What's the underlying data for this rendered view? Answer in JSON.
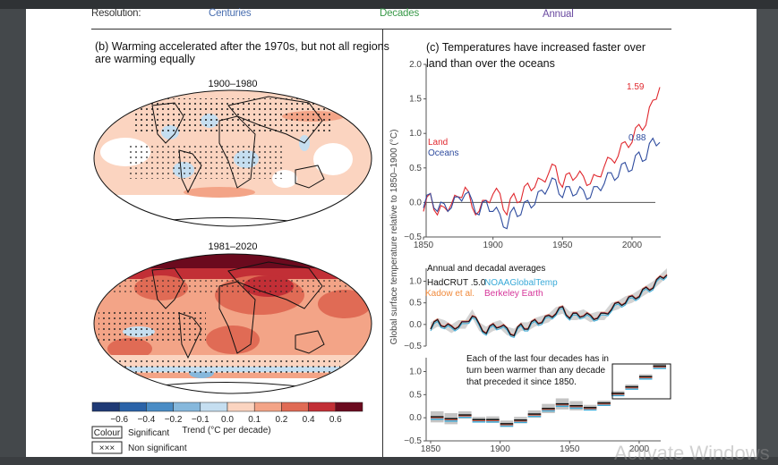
{
  "resolution": {
    "label": "Resolution:",
    "options": [
      {
        "label": "Centuries",
        "color": "#4a6fb0"
      },
      {
        "label": "Decades",
        "color": "#3a9a4a"
      },
      {
        "label": "Annual",
        "color": "#6a4aa0"
      }
    ]
  },
  "panel_b": {
    "title_line1": "(b) Warming accelerated after the 1970s, but not all regions",
    "title_line2": "are warming equally",
    "maps": [
      {
        "period": "1900–1980"
      },
      {
        "period": "1981–2020"
      }
    ],
    "colorbar": {
      "colors": [
        "#1f3a75",
        "#2b63a8",
        "#4a8cc5",
        "#86b8dc",
        "#c5def0",
        "#fbd4c0",
        "#f3a487",
        "#e06b55",
        "#c22f36",
        "#6b0a1e"
      ],
      "ticks": [
        "−0.6",
        "−0.4",
        "−0.2",
        "−0.1",
        "0.0",
        "0.1",
        "0.2",
        "0.4",
        "0.6"
      ],
      "label": "Trend (°C per decade)"
    },
    "legend": {
      "significant_box": "Colour",
      "significant_label": "Significant",
      "nonsignificant_box": "×××",
      "nonsignificant_label": "Non significant"
    }
  },
  "chart_data": [
    {
      "type": "line",
      "title": "(c) Temperatures have increased faster over land than over the oceans",
      "ylabel": "Global surface temperature relative to 1850–1900 (°C)",
      "xlabel": "",
      "xlim": [
        1850,
        2020
      ],
      "ylim": [
        -0.5,
        2.0
      ],
      "xticks": [
        "1850",
        "1900",
        "1950",
        "2000"
      ],
      "yticks": [
        "−0.5",
        "0.0",
        "0.5",
        "1.0",
        "1.5",
        "2.0"
      ],
      "legend": [
        "Land",
        "Oceans"
      ],
      "annotations": [
        {
          "text": "1.59",
          "series": "Land"
        },
        {
          "text": "0.88",
          "series": "Oceans"
        }
      ],
      "x": [
        1850,
        1855,
        1860,
        1865,
        1870,
        1875,
        1880,
        1885,
        1890,
        1895,
        1900,
        1905,
        1910,
        1915,
        1920,
        1925,
        1930,
        1935,
        1940,
        1945,
        1950,
        1955,
        1960,
        1965,
        1970,
        1975,
        1980,
        1985,
        1990,
        1995,
        2000,
        2005,
        2010,
        2015,
        2020
      ],
      "series": [
        {
          "name": "Land",
          "color": "#e0282e",
          "values": [
            -0.05,
            0.05,
            -0.1,
            -0.15,
            0.05,
            0.0,
            0.3,
            -0.15,
            -0.05,
            -0.05,
            0.2,
            0.05,
            -0.1,
            0.05,
            0.1,
            0.2,
            0.3,
            0.25,
            0.5,
            0.45,
            0.3,
            0.35,
            0.45,
            0.3,
            0.35,
            0.3,
            0.6,
            0.55,
            0.75,
            0.8,
            0.95,
            1.05,
            1.2,
            1.4,
            1.75
          ]
        },
        {
          "name": "Oceans",
          "color": "#2e4b9e",
          "values": [
            0.0,
            0.05,
            -0.05,
            -0.1,
            0.0,
            0.0,
            0.2,
            -0.05,
            -0.1,
            -0.05,
            -0.05,
            -0.25,
            -0.3,
            -0.15,
            -0.1,
            -0.05,
            0.05,
            0.1,
            0.3,
            0.25,
            0.15,
            0.15,
            0.2,
            0.1,
            0.15,
            0.15,
            0.35,
            0.35,
            0.45,
            0.5,
            0.55,
            0.65,
            0.7,
            0.85,
            0.95
          ]
        }
      ]
    },
    {
      "type": "line",
      "title": "Annual and decadal averages",
      "xlim": [
        1850,
        2020
      ],
      "ylim": [
        -0.5,
        1.3
      ],
      "yticks": [
        "−0.5",
        "0.0",
        "0.5",
        "1.0"
      ],
      "legend": [
        {
          "name": "HadCRUT .5.0",
          "color": "#111111"
        },
        {
          "name": "NOAAGlobalTemp",
          "color": "#3aaad8"
        },
        {
          "name": "Kadow et al.",
          "color": "#f08a3c"
        },
        {
          "name": "Berkeley Earth",
          "color": "#d6369a"
        }
      ],
      "x": [
        1850,
        1855,
        1860,
        1865,
        1870,
        1875,
        1880,
        1885,
        1890,
        1895,
        1900,
        1905,
        1910,
        1915,
        1920,
        1925,
        1930,
        1935,
        1940,
        1945,
        1950,
        1955,
        1960,
        1965,
        1970,
        1975,
        1980,
        1985,
        1990,
        1995,
        2000,
        2005,
        2010,
        2015,
        2020
      ],
      "series": [
        {
          "name": "HadCRUT .5.0",
          "values": [
            -0.05,
            0.05,
            0.0,
            -0.1,
            0.0,
            0.0,
            0.25,
            -0.05,
            -0.15,
            -0.05,
            0.0,
            -0.15,
            -0.2,
            -0.05,
            -0.05,
            0.05,
            0.1,
            0.15,
            0.3,
            0.35,
            0.2,
            0.2,
            0.25,
            0.15,
            0.2,
            0.2,
            0.4,
            0.45,
            0.55,
            0.6,
            0.7,
            0.8,
            0.9,
            1.05,
            1.2
          ]
        }
      ],
      "uncertainty_band": "grey"
    },
    {
      "type": "bar",
      "title": "Each of the last four decades has in turn been warmer than any decade that preceded it since 1850.",
      "xlim": [
        1850,
        2020
      ],
      "ylim": [
        -0.5,
        1.3
      ],
      "xticks": [
        "1850",
        "1900",
        "1950",
        "2000"
      ],
      "yticks": [
        "−0.5",
        "0.0",
        "0.5",
        "1.0"
      ],
      "categories": [
        "1850s",
        "1860s",
        "1870s",
        "1880s",
        "1890s",
        "1900s",
        "1910s",
        "1920s",
        "1930s",
        "1940s",
        "1950s",
        "1960s",
        "1970s",
        "1980s",
        "1990s",
        "2000s",
        "2010s"
      ],
      "values": [
        0.02,
        -0.02,
        0.06,
        -0.04,
        -0.04,
        -0.13,
        -0.05,
        0.08,
        0.2,
        0.3,
        0.26,
        0.22,
        0.32,
        0.53,
        0.67,
        0.89,
        1.12
      ],
      "uncertainty": [
        0.12,
        0.12,
        0.08,
        0.06,
        0.07,
        0.07,
        0.07,
        0.08,
        0.1,
        0.12,
        0.1,
        0.06,
        0.05,
        0.05,
        0.05,
        0.05,
        0.05
      ],
      "highlight": [
        "1980s",
        "1990s",
        "2000s",
        "2010s"
      ]
    }
  ],
  "watermark": "Activate Windows"
}
